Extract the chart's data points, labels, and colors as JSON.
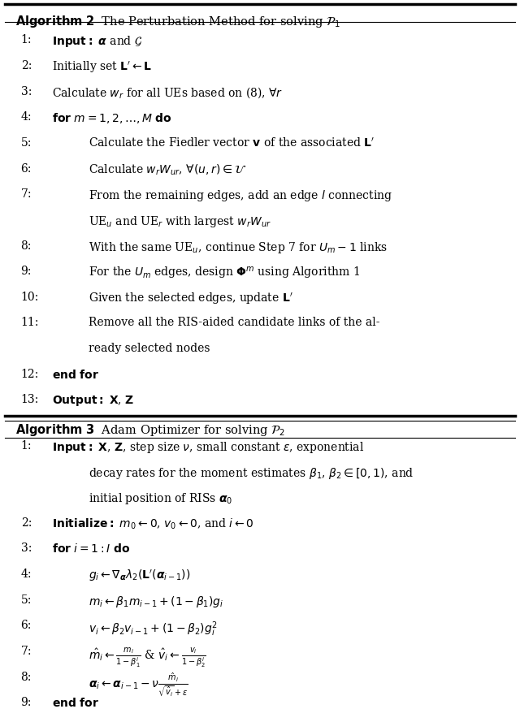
{
  "fig_width": 6.4,
  "fig_height": 8.73,
  "bg_color": "#ffffff",
  "text_color": "#000000",
  "alg2_header": "Algorithm 2  The Perturbation Method for solving $\\mathcal{P}_1$",
  "alg3_header": "Algorithm 3  Adam Optimizer for solving $\\mathcal{P}_2$",
  "alg2_lines": [
    {
      "num": "1:",
      "indent": 0,
      "text": "$\\textbf{Input:}$ $\\boldsymbol{\\alpha}$ and $\\mathcal{G}$"
    },
    {
      "num": "2:",
      "indent": 0,
      "text": "Initially set $\\mathbf{L}' \\leftarrow \\mathbf{L}$"
    },
    {
      "num": "3:",
      "indent": 0,
      "text": "Calculate $w_r$ for all UEs based on (8), $\\forall r$"
    },
    {
      "num": "4:",
      "indent": 0,
      "text": "$\\textbf{for}$ $m = 1, 2, \\ldots, M$ $\\textbf{do}$"
    },
    {
      "num": "5:",
      "indent": 1,
      "text": "Calculate the Fiedler vector $\\mathbf{v}$ of the associated $\\mathbf{L}'$"
    },
    {
      "num": "6:",
      "indent": 1,
      "text": "Calculate $w_r W_{ur}$, $\\forall (u, r) \\in \\mathcal{U}$"
    },
    {
      "num": "7:",
      "indent": 1,
      "text": "From the remaining edges, add an edge $l$ connecting UE$_u$ and UE$_r$ with largest $w_r W_{ur}$"
    },
    {
      "num": "8:",
      "indent": 1,
      "text": "With the same UE$_u$, continue Step 7 for $U_m - 1$ links"
    },
    {
      "num": "9:",
      "indent": 1,
      "text": "For the $U_m$ edges, design $\\boldsymbol{\\Phi}^m$ using Algorithm 1"
    },
    {
      "num": "10:",
      "indent": 1,
      "text": "Given the selected edges, update $\\mathbf{L}'$"
    },
    {
      "num": "11:",
      "indent": 1,
      "text": "Remove all the RIS-aided candidate links of the already selected nodes"
    },
    {
      "num": "12:",
      "indent": 0,
      "text": "$\\textbf{end for}$"
    },
    {
      "num": "13:",
      "indent": 0,
      "text": "$\\textbf{Output:}$ $\\mathbf{X}$, $\\mathbf{Z}$"
    }
  ],
  "alg3_lines": [
    {
      "num": "1:",
      "indent": 0,
      "text": "$\\textbf{Input:}$ $\\mathbf{X}$, $\\mathbf{Z}$, step size $\\nu$, small constant $\\epsilon$, exponential decay rates for the moment estimates $\\beta_1$, $\\beta_2 \\in [0, 1)$, and initial position of RISs $\\boldsymbol{\\alpha}_0$"
    },
    {
      "num": "2:",
      "indent": 0,
      "text": "$\\textbf{Initialize:}$ $m_0 \\leftarrow 0$, $v_0 \\leftarrow 0$, and $i \\leftarrow 0$"
    },
    {
      "num": "3:",
      "indent": 0,
      "text": "$\\textbf{for}$ $i = 1 : I$ $\\textbf{do}$"
    },
    {
      "num": "4:",
      "indent": 1,
      "text": "$g_i \\leftarrow \\nabla_{\\boldsymbol{\\alpha}} \\lambda_2(\\mathbf{L}'(\\boldsymbol{\\alpha}_{i-1}))$"
    },
    {
      "num": "5:",
      "indent": 1,
      "text": "$m_i \\leftarrow \\beta_1 m_{i-1} + (1 - \\beta_1) g_i$"
    },
    {
      "num": "6:",
      "indent": 1,
      "text": "$v_i \\leftarrow \\beta_2 v_{i-1} + (1 - \\beta_2) g_i^2$"
    },
    {
      "num": "7:",
      "indent": 1,
      "text": "$\\hat{m}_i \\leftarrow \\frac{m_i}{1-\\beta_1^i}$ & $\\hat{v}_i \\leftarrow \\frac{v_i}{1-\\beta_2^i}$"
    },
    {
      "num": "8:",
      "indent": 1,
      "text": "$\\boldsymbol{\\alpha}_i \\leftarrow \\boldsymbol{\\alpha}_{i-1} - \\nu \\frac{\\hat{m}_i}{\\sqrt{\\hat{v}_i}+\\epsilon}$"
    },
    {
      "num": "9:",
      "indent": 0,
      "text": "$\\textbf{end for}$"
    }
  ]
}
